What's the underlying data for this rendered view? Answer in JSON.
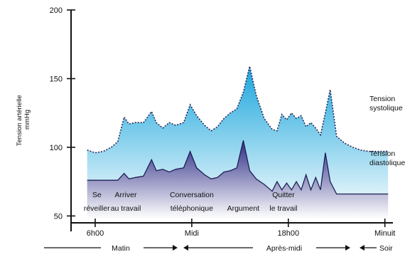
{
  "chart_data": {
    "type": "area",
    "title": "",
    "ylabel_lines": [
      "Tension artérielle",
      "mmHg"
    ],
    "ylim": [
      45,
      200
    ],
    "yticks": [
      50,
      100,
      150,
      200
    ],
    "xlim": [
      4.5,
      24.5
    ],
    "xticks": [
      {
        "x": 6,
        "label": "6h00"
      },
      {
        "x": 12,
        "label": "Midi"
      },
      {
        "x": 18,
        "label": "18h00"
      },
      {
        "x": 24,
        "label": "Minuit"
      }
    ],
    "grid": false,
    "series": [
      {
        "name": "Tension systolique",
        "name_lines": [
          "Tension",
          "systolique"
        ],
        "x": [
          5.5,
          6.0,
          6.5,
          7.0,
          7.4,
          7.8,
          8.1,
          8.5,
          9.0,
          9.5,
          9.8,
          10.2,
          10.6,
          11.0,
          11.5,
          11.9,
          12.3,
          12.8,
          13.2,
          13.6,
          14.0,
          14.4,
          14.8,
          15.2,
          15.6,
          16.0,
          16.5,
          17.0,
          17.3,
          17.6,
          17.9,
          18.2,
          18.5,
          18.8,
          19.1,
          19.4,
          19.7,
          20.0,
          20.3,
          20.6,
          21.0,
          21.5,
          22.0,
          22.5,
          23.0,
          23.5,
          24.2
        ],
        "values": [
          98,
          96,
          97,
          100,
          104,
          122,
          117,
          118,
          118,
          126,
          118,
          114,
          118,
          116,
          118,
          131,
          123,
          116,
          112,
          115,
          121,
          125,
          128,
          140,
          159,
          138,
          121,
          113,
          112,
          124,
          120,
          125,
          121,
          123,
          115,
          118,
          114,
          109,
          125,
          142,
          108,
          103,
          100,
          98,
          97,
          97,
          97
        ]
      },
      {
        "name": "Tension diastolique",
        "name_lines": [
          "Tension",
          "diastolique"
        ],
        "x": [
          5.5,
          6.0,
          6.5,
          7.0,
          7.4,
          7.8,
          8.1,
          8.5,
          9.0,
          9.5,
          9.8,
          10.2,
          10.6,
          11.0,
          11.5,
          11.9,
          12.3,
          12.8,
          13.2,
          13.6,
          14.0,
          14.4,
          14.8,
          15.2,
          15.6,
          16.0,
          16.5,
          17.0,
          17.3,
          17.6,
          17.9,
          18.2,
          18.5,
          18.8,
          19.1,
          19.4,
          19.7,
          20.0,
          20.3,
          20.6,
          21.0,
          21.5,
          22.0,
          22.5,
          23.0,
          23.5,
          24.2
        ],
        "values": [
          76,
          76,
          76,
          76,
          76,
          81,
          77,
          78,
          79,
          91,
          83,
          84,
          82,
          84,
          85,
          97,
          85,
          80,
          77,
          78,
          82,
          83,
          85,
          105,
          83,
          77,
          73,
          68,
          75,
          69,
          74,
          69,
          75,
          69,
          80,
          69,
          78,
          69,
          96,
          75,
          66,
          66,
          66,
          66,
          66,
          66,
          66
        ]
      }
    ],
    "annotations": [
      {
        "x": 6.1,
        "lines": [
          "Se",
          "réveiller"
        ]
      },
      {
        "x": 7.9,
        "lines": [
          "Arriver",
          "au travail"
        ]
      },
      {
        "x": 12.0,
        "lines": [
          "Conversation",
          "téléphonique"
        ]
      },
      {
        "x": 15.2,
        "lines": [
          "",
          "Argument"
        ]
      },
      {
        "x": 17.7,
        "lines": [
          "Quitter",
          "le travail"
        ]
      }
    ],
    "periods": [
      {
        "label": "Matin"
      },
      {
        "label": "Après-midi"
      },
      {
        "label": "Soir"
      }
    ],
    "colors": {
      "systolic_fill_top": "#1aa6dc",
      "systolic_fill_bottom": "#ffffff",
      "diastolic_fill_top": "#2d2d86",
      "diastolic_fill_bottom": "#ffffff",
      "systolic_line": "#2a2a5a",
      "diastolic_line": "#1e1e55",
      "axis": "#111111"
    }
  }
}
